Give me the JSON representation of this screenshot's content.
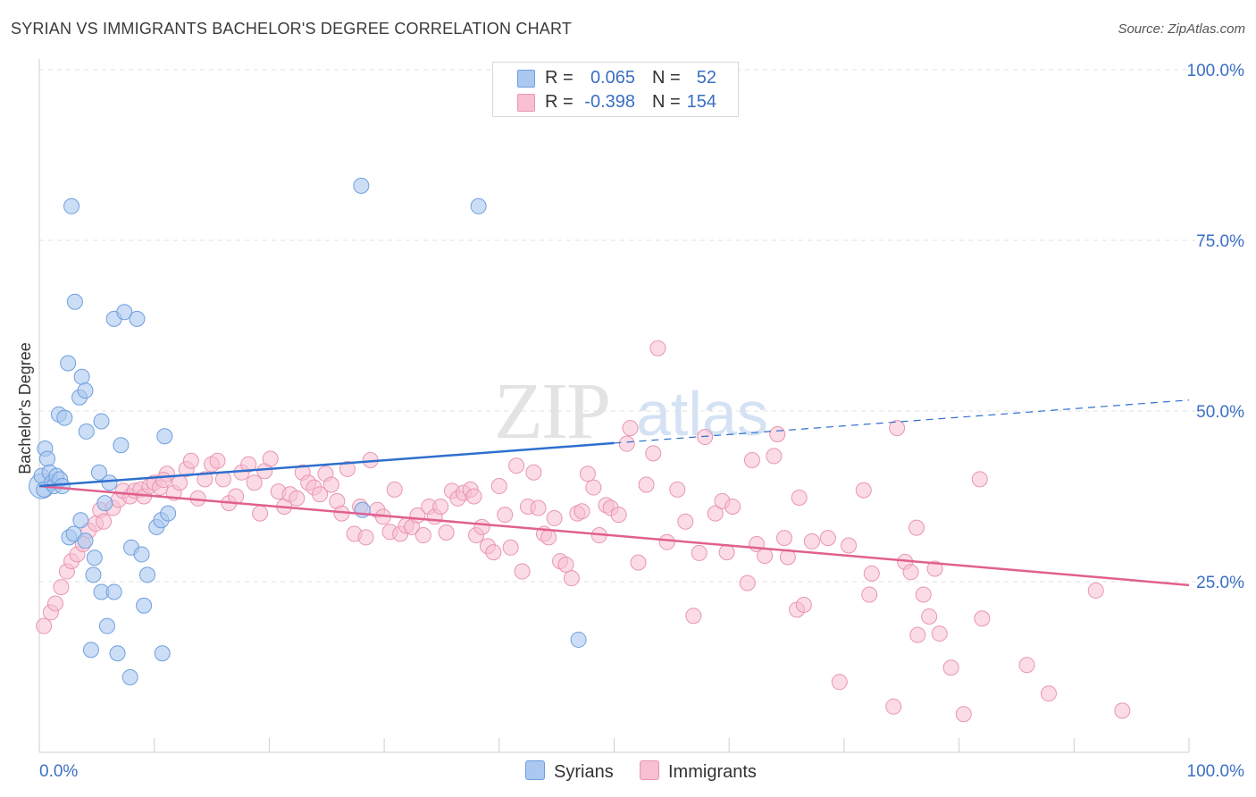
{
  "title": "SYRIAN VS IMMIGRANTS BACHELOR'S DEGREE CORRELATION CHART",
  "source": "Source: ZipAtlas.com",
  "watermark": {
    "zip": "ZIP",
    "atlas": "atlas"
  },
  "legend": {
    "syrians": {
      "r_label": "R =",
      "r_value": "0.065",
      "n_label": "N =",
      "n_value": "52"
    },
    "immigrants": {
      "r_label": "R =",
      "r_value": "-0.398",
      "n_label": "N =",
      "n_value": "154"
    }
  },
  "colors": {
    "syrians_fill": "#aac8f0",
    "syrians_stroke": "#6f9fdc",
    "syrians_line": "#2e6fce",
    "immigrants_fill": "#f7bfd1",
    "immigrants_stroke": "#e995b3",
    "immigrants_line": "#e0608f",
    "tick_label": "#3a6fc4"
  },
  "chart_data": {
    "type": "scatter",
    "title": "SYRIAN VS IMMIGRANTS BACHELOR'S DEGREE CORRELATION CHART",
    "xlabel": "",
    "ylabel": "Bachelor's Degree",
    "xlim": [
      0,
      100
    ],
    "ylim": [
      0,
      100
    ],
    "x_tick_labels": [
      "0.0%",
      "100.0%"
    ],
    "y_tick_labels": [
      "25.0%",
      "50.0%",
      "75.0%",
      "100.0%"
    ],
    "y_ticks": [
      25,
      50,
      75,
      100
    ],
    "grid": "dashed horizontal",
    "legend_position": "top-center and bottom",
    "series": [
      {
        "name": "Syrians",
        "r": 0.065,
        "n": 52,
        "trend": {
          "x0": 0,
          "y0": 39.0,
          "x1": 50,
          "y1": 45.3,
          "dash_to_x": 100,
          "dash_to_y": 51.6
        },
        "points": [
          [
            0.2,
            40.5
          ],
          [
            0.4,
            38.5
          ],
          [
            0.5,
            44.5
          ],
          [
            0.7,
            43
          ],
          [
            0.9,
            41
          ],
          [
            1.1,
            39.5
          ],
          [
            1.3,
            39
          ],
          [
            1.5,
            40.5
          ],
          [
            1.8,
            40
          ],
          [
            2,
            39
          ],
          [
            2.5,
            57
          ],
          [
            1.7,
            49.5
          ],
          [
            2.2,
            49
          ],
          [
            3.5,
            52
          ],
          [
            3.7,
            55
          ],
          [
            4,
            53
          ],
          [
            4.1,
            47
          ],
          [
            5.4,
            48.5
          ],
          [
            2.8,
            80
          ],
          [
            3.1,
            66
          ],
          [
            6.5,
            63.5
          ],
          [
            7.4,
            64.5
          ],
          [
            8.5,
            63.5
          ],
          [
            7.1,
            45
          ],
          [
            10.9,
            46.3
          ],
          [
            5.2,
            41
          ],
          [
            6.1,
            39.5
          ],
          [
            5.7,
            36.5
          ],
          [
            3.6,
            34
          ],
          [
            2.6,
            31.5
          ],
          [
            3,
            32
          ],
          [
            4,
            31
          ],
          [
            4.8,
            28.5
          ],
          [
            8,
            30
          ],
          [
            8.9,
            29
          ],
          [
            10.2,
            33
          ],
          [
            10.6,
            34
          ],
          [
            11.2,
            35
          ],
          [
            9.4,
            26
          ],
          [
            4.7,
            26
          ],
          [
            5.4,
            23.5
          ],
          [
            6.5,
            23.5
          ],
          [
            9.1,
            21.5
          ],
          [
            5.9,
            18.5
          ],
          [
            4.5,
            15
          ],
          [
            6.8,
            14.5
          ],
          [
            10.7,
            14.5
          ],
          [
            7.9,
            11
          ],
          [
            28,
            83
          ],
          [
            38.2,
            80
          ],
          [
            28.1,
            35.5
          ],
          [
            46.9,
            16.5
          ]
        ]
      },
      {
        "name": "Immigrants",
        "r": -0.398,
        "n": 154,
        "trend": {
          "x0": 0,
          "y0": 39.0,
          "x1": 100,
          "y1": 24.5
        },
        "points": [
          [
            0.4,
            18.5
          ],
          [
            1,
            20.5
          ],
          [
            1.4,
            21.8
          ],
          [
            1.9,
            24.2
          ],
          [
            2.4,
            26.5
          ],
          [
            2.8,
            28
          ],
          [
            3.3,
            29
          ],
          [
            3.8,
            30.5
          ],
          [
            4.3,
            32.5
          ],
          [
            4.9,
            33.5
          ],
          [
            5.3,
            35.5
          ],
          [
            5.6,
            33.8
          ],
          [
            6.4,
            35.8
          ],
          [
            6.9,
            37
          ],
          [
            7.3,
            38.3
          ],
          [
            7.9,
            37.5
          ],
          [
            8.3,
            38.3
          ],
          [
            8.8,
            38.5
          ],
          [
            9.1,
            37.5
          ],
          [
            9.6,
            39
          ],
          [
            10,
            39.5
          ],
          [
            10.5,
            38.8
          ],
          [
            11.1,
            40.8
          ],
          [
            11.7,
            38
          ],
          [
            12.2,
            39.5
          ],
          [
            12.8,
            41.5
          ],
          [
            13.2,
            42.7
          ],
          [
            13.8,
            37.2
          ],
          [
            14.4,
            40
          ],
          [
            15,
            42.2
          ],
          [
            15.5,
            42.7
          ],
          [
            16,
            40
          ],
          [
            16.5,
            36.5
          ],
          [
            17.1,
            37.5
          ],
          [
            17.6,
            41
          ],
          [
            18.2,
            42.2
          ],
          [
            18.7,
            39.5
          ],
          [
            19.2,
            35
          ],
          [
            19.6,
            41.2
          ],
          [
            20.1,
            43
          ],
          [
            20.8,
            38.2
          ],
          [
            21.3,
            36
          ],
          [
            21.8,
            37.8
          ],
          [
            22.4,
            37.2
          ],
          [
            22.9,
            41
          ],
          [
            23.4,
            39.5
          ],
          [
            23.9,
            38.8
          ],
          [
            24.4,
            37.8
          ],
          [
            24.9,
            40.8
          ],
          [
            25.4,
            39.2
          ],
          [
            25.9,
            36.8
          ],
          [
            26.3,
            35
          ],
          [
            26.8,
            41.5
          ],
          [
            27.4,
            32
          ],
          [
            27.9,
            36
          ],
          [
            28.4,
            31.5
          ],
          [
            28.8,
            42.8
          ],
          [
            29.4,
            35.5
          ],
          [
            29.9,
            34.5
          ],
          [
            30.5,
            32.3
          ],
          [
            30.9,
            38.5
          ],
          [
            31.4,
            32
          ],
          [
            31.9,
            33.2
          ],
          [
            32.4,
            33
          ],
          [
            32.9,
            34.7
          ],
          [
            33.4,
            31.8
          ],
          [
            33.9,
            36
          ],
          [
            34.4,
            34.5
          ],
          [
            34.9,
            36
          ],
          [
            35.4,
            32.2
          ],
          [
            35.9,
            38.3
          ],
          [
            36.4,
            37.2
          ],
          [
            36.9,
            38
          ],
          [
            37.5,
            38.5
          ],
          [
            37.8,
            37.5
          ],
          [
            38,
            31.8
          ],
          [
            38.5,
            33
          ],
          [
            39,
            30.2
          ],
          [
            39.5,
            29.3
          ],
          [
            40,
            39
          ],
          [
            40.5,
            34.8
          ],
          [
            41,
            30
          ],
          [
            41.5,
            42
          ],
          [
            42,
            26.5
          ],
          [
            42.5,
            36
          ],
          [
            43,
            41
          ],
          [
            43.4,
            35.8
          ],
          [
            43.9,
            32
          ],
          [
            44.3,
            31.5
          ],
          [
            44.8,
            34.3
          ],
          [
            45.3,
            28
          ],
          [
            45.8,
            27.5
          ],
          [
            46.3,
            25.5
          ],
          [
            46.8,
            35
          ],
          [
            47.2,
            35.3
          ],
          [
            47.7,
            40.8
          ],
          [
            48.2,
            38.8
          ],
          [
            48.7,
            31.8
          ],
          [
            49.3,
            36.2
          ],
          [
            49.7,
            35.8
          ],
          [
            50.4,
            34.8
          ],
          [
            51.1,
            45.2
          ],
          [
            51.4,
            47.5
          ],
          [
            52.1,
            27.8
          ],
          [
            52.8,
            39.2
          ],
          [
            53.4,
            43.8
          ],
          [
            53.8,
            59.2
          ],
          [
            54.6,
            30.8
          ],
          [
            55.5,
            38.5
          ],
          [
            56.2,
            33.8
          ],
          [
            56.9,
            20
          ],
          [
            57.4,
            29.2
          ],
          [
            57.9,
            46.2
          ],
          [
            58.8,
            35
          ],
          [
            59.4,
            36.8
          ],
          [
            59.8,
            29.3
          ],
          [
            60.3,
            36
          ],
          [
            61.6,
            24.8
          ],
          [
            62,
            42.8
          ],
          [
            62.4,
            30.5
          ],
          [
            63.1,
            28.8
          ],
          [
            63.9,
            43.4
          ],
          [
            64.2,
            46.6
          ],
          [
            64.8,
            31.4
          ],
          [
            65.1,
            28.6
          ],
          [
            65.9,
            20.9
          ],
          [
            66.1,
            37.3
          ],
          [
            66.5,
            21.6
          ],
          [
            67.2,
            30.9
          ],
          [
            68.6,
            31.4
          ],
          [
            69.6,
            10.3
          ],
          [
            70.4,
            30.3
          ],
          [
            71.7,
            38.4
          ],
          [
            72.2,
            23.1
          ],
          [
            72.4,
            26.2
          ],
          [
            74.3,
            6.7
          ],
          [
            74.6,
            47.5
          ],
          [
            75.3,
            27.9
          ],
          [
            75.8,
            26.4
          ],
          [
            76.3,
            32.9
          ],
          [
            76.4,
            17.2
          ],
          [
            76.9,
            23.1
          ],
          [
            77.4,
            19.9
          ],
          [
            77.9,
            26.9
          ],
          [
            78.3,
            17.4
          ],
          [
            79.3,
            12.4
          ],
          [
            80.4,
            5.6
          ],
          [
            81.8,
            40
          ],
          [
            82,
            19.6
          ],
          [
            85.9,
            12.8
          ],
          [
            87.8,
            8.6
          ],
          [
            91.9,
            23.7
          ],
          [
            94.2,
            6.1
          ],
          [
            10.8,
            39.9
          ]
        ]
      }
    ]
  }
}
